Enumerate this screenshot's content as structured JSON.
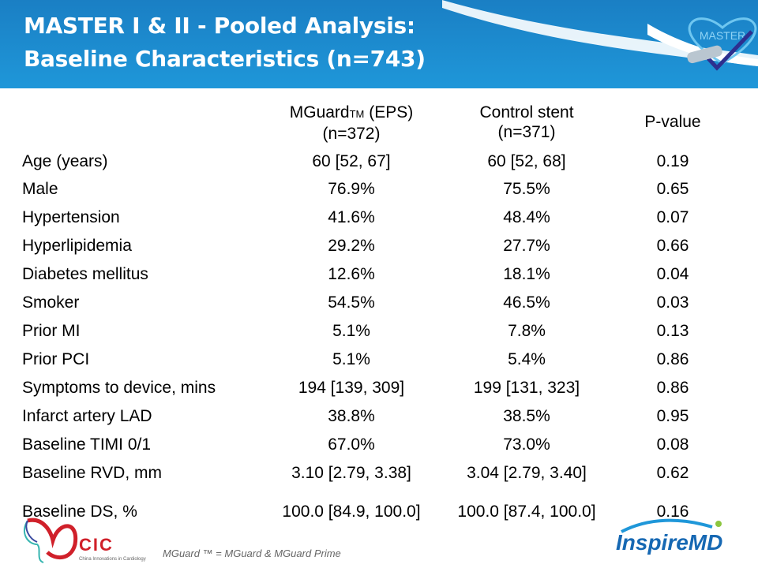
{
  "header": {
    "title_line1": "MASTER I & II - Pooled Analysis:",
    "title_line2": "Baseline Characteristics (n=743)",
    "logo_text": "MASTER"
  },
  "table": {
    "columns": [
      {
        "name": "MGuard",
        "tm": "TM",
        "suffix": " (EPS)",
        "n": "(n=372)"
      },
      {
        "name": "Control stent",
        "n": "(n=371)"
      },
      {
        "name": "P-value"
      }
    ],
    "rows": [
      [
        "Age (years)",
        "60 [52, 67]",
        "60 [52, 68]",
        "0.19"
      ],
      [
        "Male",
        "76.9%",
        "75.5%",
        "0.65"
      ],
      [
        "Hypertension",
        "41.6%",
        "48.4%",
        "0.07"
      ],
      [
        "Hyperlipidemia",
        "29.2%",
        "27.7%",
        "0.66"
      ],
      [
        "Diabetes mellitus",
        "12.6%",
        "18.1%",
        "0.04"
      ],
      [
        "Smoker",
        "54.5%",
        "46.5%",
        "0.03"
      ],
      [
        "Prior MI",
        "5.1%",
        "7.8%",
        "0.13"
      ],
      [
        "Prior PCI",
        "5.1%",
        "5.4%",
        "0.86"
      ],
      [
        "Symptoms to device, mins",
        "194 [139, 309]",
        "199 [131, 323]",
        "0.86"
      ],
      [
        "Infarct artery LAD",
        "38.8%",
        "38.5%",
        "0.95"
      ],
      [
        "Baseline TIMI 0/1",
        "67.0%",
        "73.0%",
        "0.08"
      ],
      [
        "Baseline RVD, mm",
        "3.10 [2.79, 3.38]",
        "3.04 [2.79, 3.40]",
        "0.62"
      ],
      [
        "Baseline DS, %",
        "100.0 [84.9, 100.0]",
        "100.0 [87.4, 100.0]",
        "0.16"
      ]
    ]
  },
  "footer": {
    "footnote": "MGuard ™ = MGuard & MGuard Prime",
    "cic": "CIC",
    "cic_sub": "China Innovations in Cardiology",
    "inspire": "InspireMD"
  }
}
